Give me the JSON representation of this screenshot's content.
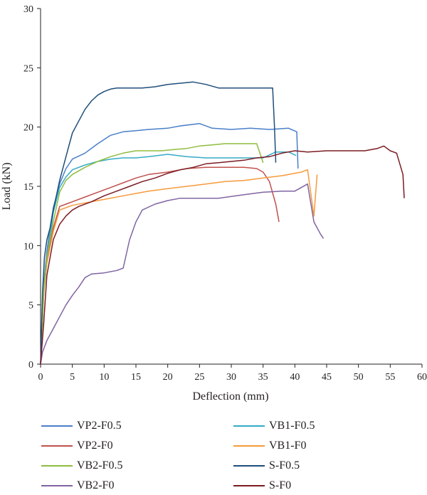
{
  "chart_data": {
    "type": "line",
    "xlabel": "Deflection (mm)",
    "ylabel": "Load (kN)",
    "xlim": [
      0,
      60
    ],
    "ylim": [
      0,
      30
    ],
    "xticks": [
      0,
      5,
      10,
      15,
      20,
      25,
      30,
      35,
      40,
      45,
      50,
      55,
      60
    ],
    "yticks": [
      0,
      5,
      10,
      15,
      20,
      25,
      30
    ],
    "grid": false,
    "legend_position": "bottom",
    "series": [
      {
        "name": "VP2-F0.5",
        "color": "#4a7fc8",
        "x": [
          0,
          0.5,
          1,
          1.5,
          2,
          3,
          4,
          5,
          7,
          9,
          11,
          13,
          15,
          17,
          20,
          22,
          25,
          27,
          30,
          33,
          36,
          39,
          40.3,
          40.5
        ],
        "y": [
          0,
          6.8,
          9.5,
          11.5,
          13.2,
          15.2,
          16.5,
          17.3,
          17.8,
          18.6,
          19.3,
          19.6,
          19.7,
          19.8,
          19.9,
          20.1,
          20.3,
          19.9,
          19.8,
          19.9,
          19.8,
          19.9,
          19.6,
          16.5
        ]
      },
      {
        "name": "VB1-F0.5",
        "color": "#35aac6",
        "x": [
          0,
          0.5,
          1,
          1.5,
          2,
          3,
          4,
          5,
          7,
          9,
          11,
          13,
          15,
          17,
          20,
          23,
          26,
          29,
          33,
          35,
          37,
          39,
          40.2
        ],
        "y": [
          0,
          6.5,
          9,
          10.8,
          12.8,
          14.9,
          15.8,
          16.4,
          16.8,
          17.1,
          17.3,
          17.4,
          17.4,
          17.5,
          17.7,
          17.5,
          17.4,
          17.4,
          17.4,
          17.4,
          17.9,
          17.9,
          17.6
        ]
      },
      {
        "name": "VP2-F0",
        "color": "#c0504d",
        "x": [
          0,
          0.5,
          1,
          2,
          3,
          4,
          5,
          7,
          9,
          11,
          13,
          15,
          17,
          20,
          23,
          26,
          29,
          32,
          34,
          35,
          36,
          37,
          37.5
        ],
        "y": [
          0,
          6,
          8.8,
          11.5,
          13.3,
          13.5,
          13.7,
          14.1,
          14.5,
          14.9,
          15.3,
          15.7,
          16,
          16.2,
          16.5,
          16.6,
          16.6,
          16.6,
          16.5,
          16.2,
          15.4,
          13.5,
          12
        ]
      },
      {
        "name": "VB1-F0",
        "color": "#f59a3c",
        "x": [
          0,
          0.5,
          1,
          2,
          3,
          4,
          5,
          7,
          9,
          11,
          13,
          15,
          17,
          20,
          23,
          26,
          29,
          32,
          35,
          38,
          41,
          42,
          43,
          43.5
        ],
        "y": [
          0,
          6,
          8.5,
          11.2,
          13,
          13.2,
          13.4,
          13.6,
          13.8,
          14,
          14.2,
          14.4,
          14.6,
          14.8,
          15,
          15.2,
          15.4,
          15.5,
          15.7,
          15.9,
          16.2,
          16.4,
          12.5,
          16
        ]
      },
      {
        "name": "VB2-F0.5",
        "color": "#8fbc3e",
        "x": [
          0,
          0.5,
          1,
          2,
          3,
          4,
          5,
          7,
          9,
          11,
          13,
          15,
          17,
          19,
          21,
          23,
          25,
          27,
          29,
          31,
          33,
          34,
          35
        ],
        "y": [
          0,
          6.2,
          9,
          12,
          14.5,
          15.5,
          16,
          16.6,
          17.1,
          17.5,
          17.8,
          18,
          18,
          18,
          18.1,
          18.2,
          18.4,
          18.5,
          18.6,
          18.6,
          18.6,
          18.6,
          17
        ]
      },
      {
        "name": "S-F0.5",
        "color": "#1f4e79",
        "x": [
          0,
          0.3,
          0.6,
          1,
          1.5,
          2,
          3,
          4,
          5,
          6,
          7,
          8,
          9,
          10,
          11,
          12,
          14,
          16,
          18,
          20,
          22,
          24,
          26,
          28,
          30,
          33,
          35,
          36.5,
          36.8,
          37
        ],
        "y": [
          0,
          6,
          9,
          10.5,
          11.5,
          13,
          15.5,
          17.5,
          19.5,
          20.5,
          21.5,
          22.2,
          22.7,
          23,
          23.2,
          23.3,
          23.3,
          23.3,
          23.4,
          23.6,
          23.7,
          23.8,
          23.6,
          23.3,
          23.3,
          23.3,
          23.3,
          23.3,
          20,
          17
        ]
      },
      {
        "name": "VB2-F0",
        "color": "#8064a2",
        "x": [
          0,
          0.3,
          1,
          2,
          3,
          4,
          5,
          6,
          7,
          8,
          10,
          12,
          13,
          14,
          15,
          16,
          18,
          20,
          22,
          25,
          28,
          32,
          35,
          38,
          40,
          42,
          43,
          44,
          44.5
        ],
        "y": [
          0,
          1,
          2,
          3,
          4,
          5,
          5.8,
          6.5,
          7.3,
          7.6,
          7.7,
          7.9,
          8.1,
          10.5,
          12,
          13,
          13.5,
          13.8,
          14,
          14,
          14,
          14.3,
          14.5,
          14.6,
          14.6,
          15.2,
          12,
          11,
          10.6
        ]
      },
      {
        "name": "S-F0",
        "color": "#7b1b22",
        "x": [
          0,
          0.5,
          1,
          2,
          3,
          4,
          5,
          6,
          8,
          10,
          12,
          14,
          16,
          18,
          20,
          22,
          24,
          26,
          28,
          30,
          32,
          34,
          36,
          38,
          40,
          42,
          45,
          48,
          51,
          53,
          54,
          55,
          56,
          57,
          57.2
        ],
        "y": [
          0,
          3.5,
          7.5,
          10.5,
          11.8,
          12.5,
          13,
          13.3,
          13.7,
          14.2,
          14.6,
          15,
          15.4,
          15.7,
          16.1,
          16.4,
          16.6,
          16.9,
          17,
          17.1,
          17.2,
          17.4,
          17.5,
          17.8,
          18,
          17.9,
          18,
          18,
          18,
          18.2,
          18.4,
          18,
          17.8,
          16,
          14
        ]
      }
    ]
  }
}
